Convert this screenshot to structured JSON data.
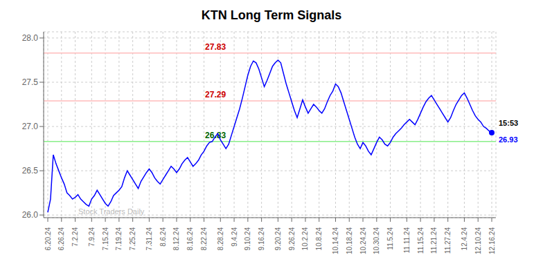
{
  "chart_data": {
    "type": "line",
    "title": "KTN Long Term Signals",
    "categories": [
      "6.20.24",
      null,
      null,
      null,
      null,
      "6.26.24",
      null,
      null,
      null,
      null,
      "7.2.24",
      null,
      null,
      null,
      null,
      null,
      "7.9.24",
      null,
      null,
      null,
      null,
      "7.15.24",
      null,
      null,
      null,
      null,
      "7.19.24",
      null,
      null,
      null,
      null,
      "7.25.24",
      null,
      null,
      null,
      null,
      null,
      "7.31.24",
      null,
      null,
      null,
      null,
      "8.6.24",
      null,
      null,
      null,
      null,
      "8.12.24",
      null,
      null,
      null,
      null,
      "8.16.24",
      null,
      null,
      null,
      null,
      "8.22.24",
      null,
      null,
      null,
      null,
      null,
      "8.28.24",
      null,
      null,
      null,
      null,
      "9.4.24",
      null,
      null,
      null,
      null,
      "9.10.24",
      null,
      null,
      null,
      null,
      "9.16.24",
      null,
      null,
      null,
      null,
      null,
      "9.20.24",
      null,
      null,
      null,
      null,
      "9.26.24",
      null,
      null,
      null,
      null,
      "10.2.24",
      null,
      null,
      null,
      null,
      "10.8.24",
      null,
      null,
      null,
      null,
      null,
      "10.14.24",
      null,
      null,
      null,
      null,
      "10.18.24",
      null,
      null,
      null,
      null,
      "10.24.24",
      null,
      null,
      null,
      null,
      "10.30.24",
      null,
      null,
      null,
      null,
      "11.5.24",
      null,
      null,
      null,
      null,
      null,
      "11.11.24",
      null,
      null,
      null,
      null,
      "11.15.24",
      null,
      null,
      null,
      null,
      "11.21.24",
      null,
      null,
      null,
      null,
      "11.27.24",
      null,
      null,
      null,
      null,
      null,
      "12.4.24",
      null,
      null,
      null,
      null,
      "12.10.24",
      null,
      null,
      null,
      null,
      "12.16.24"
    ],
    "values": [
      26.03,
      26.18,
      26.68,
      26.58,
      26.5,
      26.42,
      26.35,
      26.25,
      26.22,
      26.18,
      26.2,
      26.23,
      26.18,
      26.15,
      26.12,
      26.1,
      26.18,
      26.22,
      26.28,
      26.23,
      26.18,
      26.13,
      26.1,
      26.15,
      26.22,
      26.25,
      26.28,
      26.32,
      26.42,
      26.5,
      26.45,
      26.4,
      26.35,
      26.3,
      26.38,
      26.43,
      26.48,
      26.52,
      26.48,
      26.42,
      26.38,
      26.35,
      26.4,
      26.45,
      26.5,
      26.55,
      26.52,
      26.48,
      26.52,
      26.58,
      26.62,
      26.65,
      26.6,
      26.55,
      26.58,
      26.62,
      26.68,
      26.72,
      26.78,
      26.82,
      26.83,
      26.88,
      26.92,
      26.85,
      26.8,
      26.75,
      26.8,
      26.9,
      27.0,
      27.1,
      27.2,
      27.32,
      27.45,
      27.58,
      27.68,
      27.74,
      27.72,
      27.65,
      27.55,
      27.45,
      27.52,
      27.6,
      27.68,
      27.72,
      27.75,
      27.72,
      27.6,
      27.48,
      27.38,
      27.28,
      27.18,
      27.1,
      27.2,
      27.3,
      27.22,
      27.15,
      27.2,
      27.25,
      27.22,
      27.18,
      27.15,
      27.2,
      27.28,
      27.35,
      27.4,
      27.48,
      27.45,
      27.38,
      27.28,
      27.18,
      27.08,
      26.98,
      26.88,
      26.8,
      26.75,
      26.82,
      26.78,
      26.72,
      26.68,
      26.75,
      26.82,
      26.88,
      26.85,
      26.8,
      26.78,
      26.82,
      26.88,
      26.92,
      26.95,
      26.98,
      27.02,
      27.05,
      27.08,
      27.05,
      27.02,
      27.08,
      27.15,
      27.22,
      27.28,
      27.32,
      27.35,
      27.3,
      27.25,
      27.2,
      27.15,
      27.1,
      27.05,
      27.1,
      27.18,
      27.25,
      27.3,
      27.35,
      27.38,
      27.32,
      27.25,
      27.18,
      27.12,
      27.08,
      27.05,
      27.0,
      26.98,
      26.95,
      26.93
    ],
    "color": "blue",
    "ylim": [
      25.97,
      28.07
    ],
    "yticks": [
      {
        "value": 26.0,
        "label": "26.0"
      },
      {
        "value": 26.5,
        "label": "26.5"
      },
      {
        "value": 27.0,
        "label": "27.0"
      },
      {
        "value": 27.5,
        "label": "27.5"
      },
      {
        "value": 28.0,
        "label": "28.0"
      }
    ],
    "grid": true,
    "reference_lines": [
      {
        "value": 27.83,
        "label": "27.83",
        "color": "#ffbbbb",
        "label_color": "#cc0000"
      },
      {
        "value": 27.29,
        "label": "27.29",
        "color": "#ffbbbb",
        "label_color": "#cc0000"
      },
      {
        "value": 26.83,
        "label": "26.83",
        "color": "#88ee88",
        "label_color": "#006600"
      }
    ],
    "annotations": [
      {
        "text": "15:53",
        "color": "black"
      },
      {
        "text": "26.93",
        "color": "blue"
      },
      {
        "text": "Stock Traders Daily",
        "color": "#bbbbbb"
      }
    ]
  }
}
